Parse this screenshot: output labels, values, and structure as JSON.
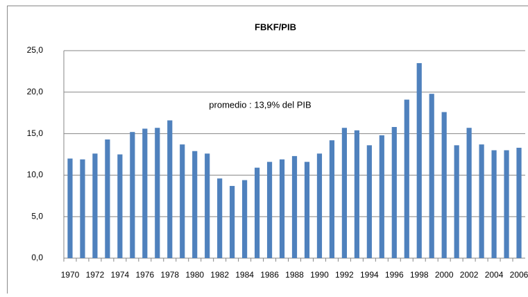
{
  "chart_data": {
    "type": "bar",
    "title": "FBKF/PIB",
    "annotation": "promedio : 13,9% del PIB",
    "categories": [
      "1970",
      null,
      "1972",
      null,
      "1974",
      null,
      "1976",
      null,
      "1978",
      null,
      "1980",
      null,
      "1982",
      null,
      "1984",
      null,
      "1986",
      null,
      "1988",
      null,
      "1990",
      null,
      "1992",
      null,
      "1994",
      null,
      "1996",
      null,
      "1998",
      null,
      "2000",
      null,
      "2002",
      null,
      "2004",
      null,
      "2006"
    ],
    "values": [
      12.0,
      11.9,
      12.6,
      14.3,
      12.5,
      15.2,
      15.6,
      15.7,
      16.6,
      13.7,
      12.9,
      12.6,
      9.6,
      8.7,
      9.4,
      10.9,
      11.6,
      11.9,
      12.3,
      11.6,
      12.6,
      14.2,
      15.7,
      15.4,
      13.6,
      14.8,
      15.8,
      19.1,
      23.5,
      19.8,
      17.6,
      13.6,
      15.7,
      13.7,
      13.0,
      13.0,
      13.3
    ],
    "color": "#4f81bd",
    "ylim": [
      0,
      25
    ],
    "yticks": [
      {
        "value": 0,
        "label": "0,0"
      },
      {
        "value": 5,
        "label": "5,0"
      },
      {
        "value": 10,
        "label": "10,0"
      },
      {
        "value": 15,
        "label": "15,0"
      },
      {
        "value": 20,
        "label": "20,0"
      },
      {
        "value": 25,
        "label": "25,0"
      }
    ],
    "grid": true
  }
}
